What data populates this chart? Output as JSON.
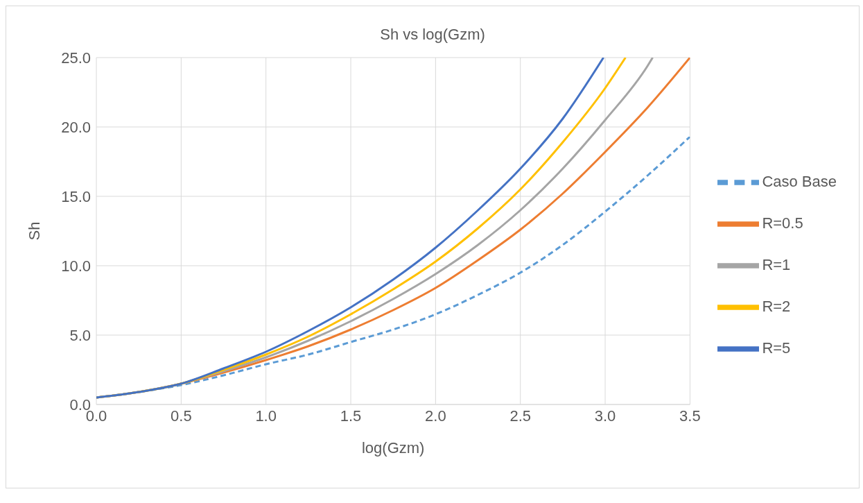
{
  "chart_data": {
    "type": "line",
    "title": "Sh vs log(Gzm)",
    "xlabel": "log(Gzm)",
    "ylabel": "Sh",
    "xlim": [
      0,
      3.5
    ],
    "xticks": [
      {
        "value": 0,
        "label": "0.0"
      },
      {
        "value": 0.5,
        "label": "0.5"
      },
      {
        "value": 1,
        "label": "1.0"
      },
      {
        "value": 1.5,
        "label": "1.5"
      },
      {
        "value": 2,
        "label": "2.0"
      },
      {
        "value": 2.5,
        "label": "2.5"
      },
      {
        "value": 3,
        "label": "3.0"
      },
      {
        "value": 3.5,
        "label": "3.5"
      }
    ],
    "ylim": [
      0,
      25
    ],
    "yticks": [
      {
        "value": 0,
        "label": "0.0"
      },
      {
        "value": 5,
        "label": "5.0"
      },
      {
        "value": 10,
        "label": "10.0"
      },
      {
        "value": 15,
        "label": "15.0"
      },
      {
        "value": 20,
        "label": "20.0"
      },
      {
        "value": 25,
        "label": "25.0"
      }
    ],
    "grid": true,
    "legend": "right",
    "marker": "none",
    "series": [
      {
        "name": "Caso Base",
        "color": "#5b9bd5",
        "line_style": "dashed",
        "x": [
          0,
          0.25,
          0.5,
          0.75,
          1,
          1.25,
          1.5,
          1.75,
          2,
          2.25,
          2.5,
          2.75,
          3,
          3.25,
          3.5
        ],
        "values": [
          0.5,
          0.9,
          1.4,
          2.1,
          2.9,
          3.6,
          4.5,
          5.4,
          6.5,
          7.9,
          9.5,
          11.5,
          13.9,
          16.5,
          19.3
        ]
      },
      {
        "name": "R=0.5",
        "color": "#ed7d31",
        "line_style": "solid",
        "x": [
          0,
          0.25,
          0.5,
          0.75,
          1,
          1.25,
          1.5,
          1.75,
          2,
          2.25,
          2.5,
          2.75,
          3,
          3.25,
          3.5
        ],
        "values": [
          0.5,
          0.9,
          1.5,
          2.3,
          3.2,
          4.2,
          5.4,
          6.8,
          8.4,
          10.4,
          12.6,
          15.2,
          18.2,
          21.4,
          25
        ]
      },
      {
        "name": "R=1",
        "color": "#a5a5a5",
        "line_style": "solid",
        "x": [
          0,
          0.25,
          0.5,
          0.75,
          1,
          1.25,
          1.5,
          1.75,
          2,
          2.25,
          2.5,
          2.75,
          3,
          3.25,
          3.28
        ],
        "values": [
          0.5,
          0.9,
          1.5,
          2.4,
          3.4,
          4.6,
          6.0,
          7.6,
          9.4,
          11.5,
          14.0,
          17.0,
          20.5,
          24.4,
          25
        ]
      },
      {
        "name": "R=2",
        "color": "#ffc000",
        "line_style": "solid",
        "x": [
          0,
          0.25,
          0.5,
          0.75,
          1,
          1.25,
          1.5,
          1.75,
          2,
          2.25,
          2.5,
          2.75,
          3,
          3.12
        ],
        "values": [
          0.5,
          0.9,
          1.5,
          2.5,
          3.6,
          4.9,
          6.5,
          8.3,
          10.3,
          12.7,
          15.5,
          18.9,
          22.8,
          25
        ]
      },
      {
        "name": "R=5",
        "color": "#4472c4",
        "line_style": "solid",
        "x": [
          0,
          0.25,
          0.5,
          0.75,
          1,
          1.25,
          1.5,
          1.75,
          2,
          2.25,
          2.5,
          2.75,
          2.99
        ],
        "values": [
          0.5,
          0.9,
          1.5,
          2.6,
          3.8,
          5.3,
          7.0,
          9.0,
          11.3,
          14.0,
          17.0,
          20.6,
          25
        ]
      }
    ]
  }
}
